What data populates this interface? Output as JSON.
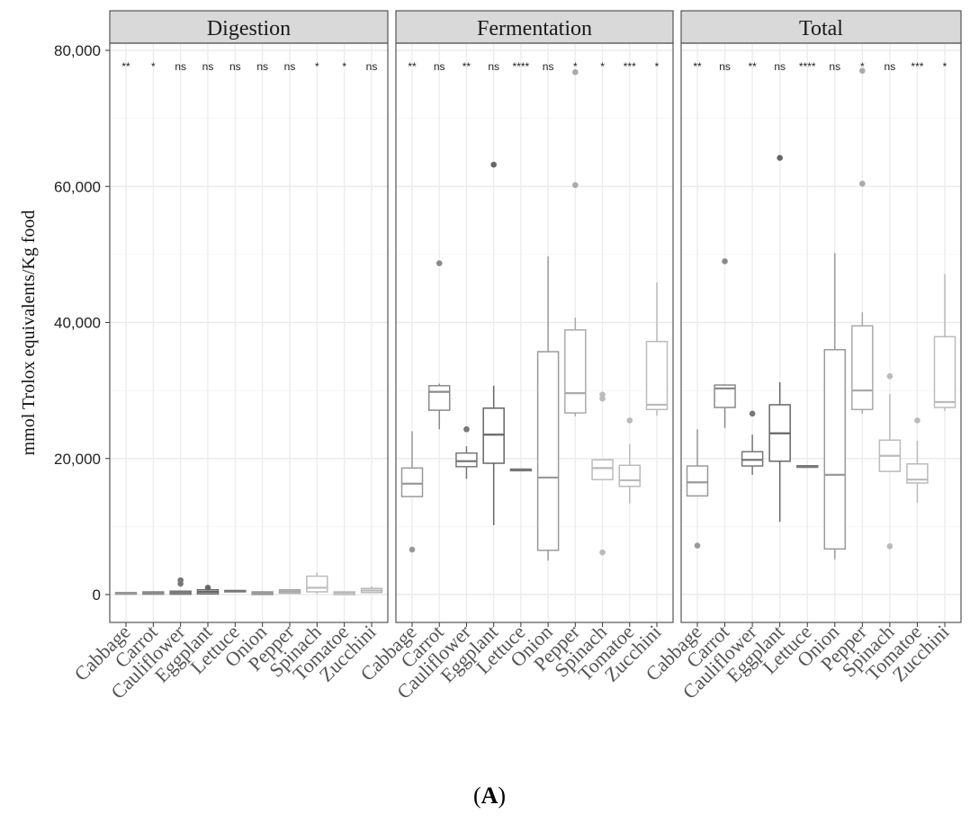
{
  "chart_data": {
    "type": "boxplot",
    "ylabel": "mmol Trolox equivalents/Kg food",
    "ylim": [
      -4000,
      82000
    ],
    "yticks": [
      0,
      20000,
      40000,
      60000,
      80000
    ],
    "ytick_labels": [
      "0",
      "20,000",
      "40,000",
      "60,000",
      "80,000"
    ],
    "grid": true,
    "caption_open": "(",
    "caption_letter": "A",
    "caption_close": ")",
    "categories": [
      "Cabbage",
      "Carrot",
      "Cauliflower",
      "Eggplant",
      "Lettuce",
      "Onion",
      "Pepper",
      "Spinach",
      "Tomatoe",
      "Zucchini"
    ],
    "category_colors": [
      "#999999",
      "#8a8a8a",
      "#777777",
      "#666666",
      "#777777",
      "#9a9a9a",
      "#aaaaaa",
      "#bbbbbb",
      "#bbbbbb",
      "#bbbbbb"
    ],
    "facets": [
      {
        "name": "Digestion",
        "significance": [
          "**",
          "*",
          "ns",
          "ns",
          "ns",
          "ns",
          "ns",
          "*",
          "*",
          "ns"
        ],
        "boxes": [
          {
            "low": 0,
            "q1": 50,
            "median": 200,
            "q3": 300,
            "high": 350,
            "outliers": []
          },
          {
            "low": 0,
            "q1": 50,
            "median": 250,
            "q3": 400,
            "high": 450,
            "outliers": []
          },
          {
            "low": 0,
            "q1": 50,
            "median": 300,
            "q3": 500,
            "high": 600,
            "outliers": [
              1600,
              2100
            ]
          },
          {
            "low": 100,
            "q1": 100,
            "median": 400,
            "q3": 700,
            "high": 800,
            "outliers": [
              1000
            ]
          },
          {
            "low": 400,
            "q1": 400,
            "median": 500,
            "q3": 600,
            "high": 600,
            "outliers": []
          },
          {
            "low": 0,
            "q1": 0,
            "median": 200,
            "q3": 400,
            "high": 500,
            "outliers": []
          },
          {
            "low": 200,
            "q1": 200,
            "median": 450,
            "q3": 700,
            "high": 700,
            "outliers": []
          },
          {
            "low": 100,
            "q1": 400,
            "median": 1000,
            "q3": 2700,
            "high": 3200,
            "outliers": []
          },
          {
            "low": 0,
            "q1": 0,
            "median": 250,
            "q3": 400,
            "high": 400,
            "outliers": []
          },
          {
            "low": 300,
            "q1": 300,
            "median": 600,
            "q3": 900,
            "high": 1200,
            "outliers": []
          }
        ]
      },
      {
        "name": "Fermentation",
        "significance": [
          "**",
          "ns",
          "**",
          "ns",
          "****",
          "ns",
          "*",
          "*",
          "***",
          "*"
        ],
        "boxes": [
          {
            "low": 14400,
            "q1": 14400,
            "median": 16300,
            "q3": 18600,
            "high": 24000,
            "outliers": [
              6600
            ]
          },
          {
            "low": 24300,
            "q1": 27100,
            "median": 29800,
            "q3": 30700,
            "high": 31000,
            "outliers": [
              48700
            ]
          },
          {
            "low": 17000,
            "q1": 18800,
            "median": 19600,
            "q3": 20800,
            "high": 21800,
            "outliers": [
              24300
            ]
          },
          {
            "low": 10200,
            "q1": 19300,
            "median": 23500,
            "q3": 27400,
            "high": 30700,
            "outliers": [
              63200
            ]
          },
          {
            "low": 18400,
            "q1": 18400,
            "median": 18400,
            "q3": 18400,
            "high": 18400,
            "outliers": []
          },
          {
            "low": 5000,
            "q1": 6500,
            "median": 17200,
            "q3": 35700,
            "high": 49700,
            "outliers": []
          },
          {
            "low": 26200,
            "q1": 26700,
            "median": 29600,
            "q3": 38900,
            "high": 40700,
            "outliers": [
              60200,
              76800
            ]
          },
          {
            "low": 16900,
            "q1": 16900,
            "median": 18600,
            "q3": 19800,
            "high": 19800,
            "outliers": [
              6200,
              28800,
              29400
            ]
          },
          {
            "low": 13400,
            "q1": 15900,
            "median": 16800,
            "q3": 19000,
            "high": 22100,
            "outliers": [
              25600
            ]
          },
          {
            "low": 26300,
            "q1": 27200,
            "median": 27900,
            "q3": 37200,
            "high": 45900,
            "outliers": []
          }
        ]
      },
      {
        "name": "Total",
        "significance": [
          "**",
          "ns",
          "**",
          "ns",
          "****",
          "ns",
          "*",
          "ns",
          "***",
          "*"
        ],
        "boxes": [
          {
            "low": 14500,
            "q1": 14500,
            "median": 16500,
            "q3": 18900,
            "high": 24300,
            "outliers": [
              7200
            ]
          },
          {
            "low": 24500,
            "q1": 27500,
            "median": 30300,
            "q3": 30800,
            "high": 30900,
            "outliers": [
              49000
            ]
          },
          {
            "low": 17600,
            "q1": 18900,
            "median": 19800,
            "q3": 21000,
            "high": 23500,
            "outliers": [
              26600
            ]
          },
          {
            "low": 10700,
            "q1": 19600,
            "median": 23700,
            "q3": 27900,
            "high": 31200,
            "outliers": [
              64200
            ]
          },
          {
            "low": 18900,
            "q1": 18900,
            "median": 18900,
            "q3": 18900,
            "high": 18900,
            "outliers": []
          },
          {
            "low": 5200,
            "q1": 6700,
            "median": 17600,
            "q3": 36000,
            "high": 50200,
            "outliers": []
          },
          {
            "low": 26600,
            "q1": 27200,
            "median": 30000,
            "q3": 39500,
            "high": 41500,
            "outliers": [
              60400,
              77000
            ]
          },
          {
            "low": 18100,
            "q1": 18100,
            "median": 20400,
            "q3": 22700,
            "high": 29500,
            "outliers": [
              7100,
              32100
            ]
          },
          {
            "low": 13500,
            "q1": 16400,
            "median": 16900,
            "q3": 19200,
            "high": 22600,
            "outliers": [
              25600
            ]
          },
          {
            "low": 27000,
            "q1": 27500,
            "median": 28300,
            "q3": 37900,
            "high": 47100,
            "outliers": []
          }
        ]
      }
    ]
  }
}
